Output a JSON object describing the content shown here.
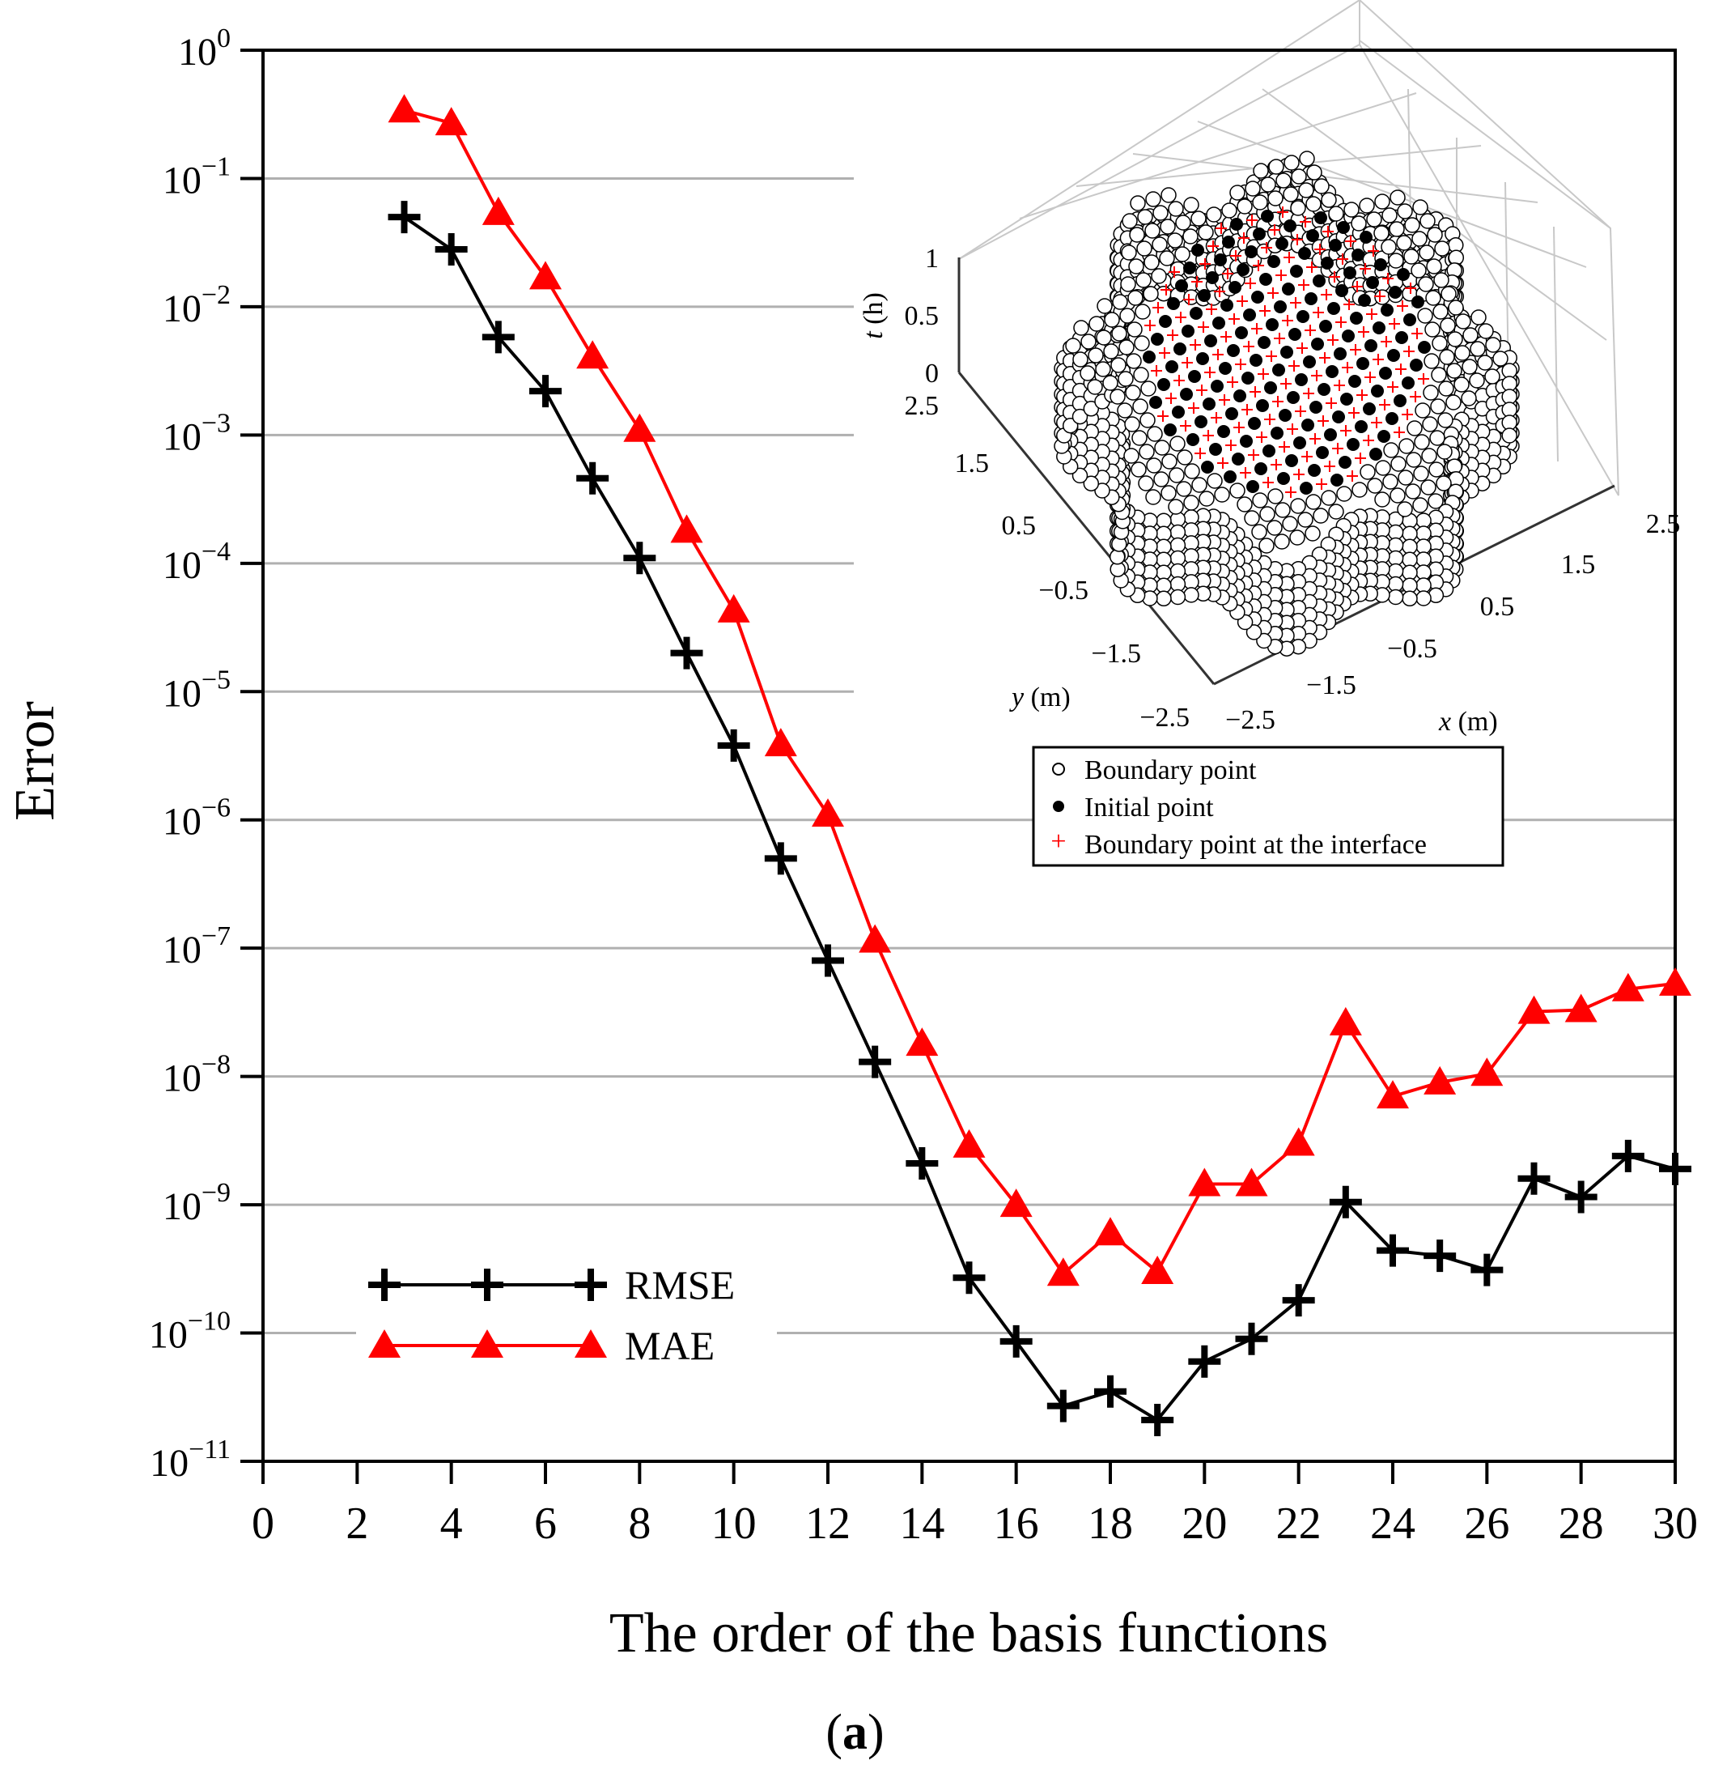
{
  "chart_data": {
    "type": "line",
    "yscale": "log",
    "xlabel": "The order of the basis functions",
    "ylabel": "Error",
    "xlim": [
      0,
      30
    ],
    "xticks": [
      0,
      2,
      4,
      6,
      8,
      10,
      12,
      14,
      16,
      18,
      20,
      22,
      24,
      26,
      28,
      30
    ],
    "ylim_exp": [
      -11,
      0
    ],
    "yticks": [
      {
        "exp": 0,
        "label": "10",
        "sup": "0"
      },
      {
        "exp": -1,
        "label": "10",
        "sup": "−1"
      },
      {
        "exp": -2,
        "label": "10",
        "sup": "−2"
      },
      {
        "exp": -3,
        "label": "10",
        "sup": "−3"
      },
      {
        "exp": -4,
        "label": "10",
        "sup": "−4"
      },
      {
        "exp": -5,
        "label": "10",
        "sup": "−5"
      },
      {
        "exp": -6,
        "label": "10",
        "sup": "−6"
      },
      {
        "exp": -7,
        "label": "10",
        "sup": "−7"
      },
      {
        "exp": -8,
        "label": "10",
        "sup": "−8"
      },
      {
        "exp": -9,
        "label": "10",
        "sup": "−9"
      },
      {
        "exp": -10,
        "label": "10",
        "sup": "−10"
      },
      {
        "exp": -11,
        "label": "10",
        "sup": "−11"
      }
    ],
    "grid": "horizontal",
    "x": [
      3,
      4,
      5,
      6,
      7,
      8,
      9,
      10,
      11,
      12,
      13,
      14,
      15,
      16,
      17,
      18,
      19,
      20,
      21,
      22,
      23,
      24,
      25,
      26,
      27,
      28,
      29,
      30
    ],
    "series": [
      {
        "name": "RMSE",
        "color": "#000000",
        "marker": "plus",
        "values": [
          0.05,
          0.028,
          0.0058,
          0.0022,
          0.00046,
          0.00011,
          2e-05,
          3.8e-06,
          5e-07,
          8e-08,
          1.3e-08,
          2.1e-09,
          2.7e-10,
          8.6e-11,
          2.7e-11,
          3.5e-11,
          2.1e-11,
          6e-11,
          9e-11,
          1.8e-10,
          1.05e-09,
          4.4e-10,
          4e-10,
          3.1e-10,
          1.6e-09,
          1.15e-09,
          2.4e-09,
          1.9e-09
        ]
      },
      {
        "name": "MAE",
        "color": "#ff0000",
        "marker": "triangle",
        "values": [
          0.34,
          0.27,
          0.054,
          0.017,
          0.0041,
          0.0011,
          0.00018,
          4.3e-05,
          3.9e-06,
          1.1e-06,
          1.15e-07,
          1.8e-08,
          2.9e-09,
          1e-09,
          2.9e-10,
          6e-10,
          3e-10,
          1.45e-09,
          1.45e-09,
          3e-09,
          2.6e-08,
          7e-09,
          9e-09,
          1.05e-08,
          3.2e-08,
          3.3e-08,
          4.8e-08,
          5.3e-08
        ]
      }
    ],
    "legend": {
      "position": "bottom-left",
      "entries": [
        "RMSE",
        "MAE"
      ]
    },
    "inset": {
      "type": "scatter3d",
      "z_label_var": "t",
      "z_label_unit": "(h)",
      "y_label_var": "y",
      "y_label_unit": "(m)",
      "x_label_var": "x",
      "x_label_unit": "(m)",
      "z_ticks": [
        "1",
        "0.5",
        "0"
      ],
      "y_ticks": [
        "2.5",
        "1.5",
        "0.5",
        "−0.5",
        "−1.5",
        "−2.5"
      ],
      "x_ticks": [
        "−2.5",
        "−1.5",
        "−0.5",
        "0.5",
        "1.5",
        "2.5"
      ],
      "legend": [
        {
          "marker": "open-circle",
          "label": "Boundary point"
        },
        {
          "marker": "filled-circle",
          "label": "Initial point"
        },
        {
          "marker": "red-plus",
          "label": "Boundary point at the interface"
        }
      ]
    }
  },
  "caption": {
    "open": "(",
    "letter": "a",
    "close": ")"
  }
}
